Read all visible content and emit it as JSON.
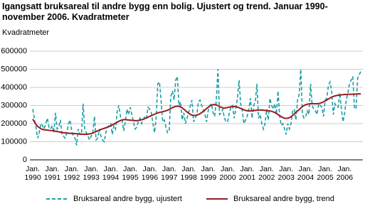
{
  "chart_data": {
    "type": "line",
    "title": "Igangsatt bruksareal til andre bygg enn bolig. Ujustert og trend. Januar 1990-november 2006. Kvadratmeter",
    "y_label": "Kvadratmeter",
    "categories": [
      "Jan. 1990",
      null,
      null,
      null,
      null,
      null,
      null,
      null,
      null,
      null,
      null,
      null,
      "Jan. 1991",
      null,
      null,
      null,
      null,
      null,
      null,
      null,
      null,
      null,
      null,
      null,
      "Jan. 1992",
      null,
      null,
      null,
      null,
      null,
      null,
      null,
      null,
      null,
      null,
      null,
      "Jan. 1993",
      null,
      null,
      null,
      null,
      null,
      null,
      null,
      null,
      null,
      null,
      null,
      "Jan. 1994",
      null,
      null,
      null,
      null,
      null,
      null,
      null,
      null,
      null,
      null,
      null,
      "Jan. 1995",
      null,
      null,
      null,
      null,
      null,
      null,
      null,
      null,
      null,
      null,
      null,
      "Jan. 1996",
      null,
      null,
      null,
      null,
      null,
      null,
      null,
      null,
      null,
      null,
      null,
      "Jan. 1997",
      null,
      null,
      null,
      null,
      null,
      null,
      null,
      null,
      null,
      null,
      null,
      "Jan. 1998",
      null,
      null,
      null,
      null,
      null,
      null,
      null,
      null,
      null,
      null,
      null,
      "Jan. 1999",
      null,
      null,
      null,
      null,
      null,
      null,
      null,
      null,
      null,
      null,
      null,
      "Jan. 2000",
      null,
      null,
      null,
      null,
      null,
      null,
      null,
      null,
      null,
      null,
      null,
      "Jan. 2001",
      null,
      null,
      null,
      null,
      null,
      null,
      null,
      null,
      null,
      null,
      null,
      "Jan. 2002",
      null,
      null,
      null,
      null,
      null,
      null,
      null,
      null,
      null,
      null,
      null,
      "Jan. 2003",
      null,
      null,
      null,
      null,
      null,
      null,
      null,
      null,
      null,
      null,
      null,
      "Jan. 2004",
      null,
      null,
      null,
      null,
      null,
      null,
      null,
      null,
      null,
      null,
      null,
      "Jan. 2005",
      null,
      null,
      null,
      null,
      null,
      null,
      null,
      null,
      null,
      null,
      null,
      "Jan. 2006",
      null,
      null,
      null,
      null,
      null,
      null,
      null,
      null,
      null,
      null
    ],
    "series": [
      {
        "name": "Bruksareal andre bygg, ujustert",
        "color": "#1a9ea6",
        "dashed": true,
        "values": [
          280000,
          230000,
          180000,
          120000,
          150000,
          200000,
          190000,
          170000,
          200000,
          230000,
          180000,
          170000,
          190000,
          150000,
          260000,
          170000,
          180000,
          220000,
          140000,
          130000,
          120000,
          150000,
          200000,
          220000,
          160000,
          130000,
          120000,
          80000,
          170000,
          140000,
          140000,
          310000,
          170000,
          150000,
          130000,
          110000,
          130000,
          150000,
          240000,
          110000,
          120000,
          170000,
          130000,
          110000,
          100000,
          150000,
          180000,
          190000,
          200000,
          140000,
          190000,
          170000,
          270000,
          300000,
          240000,
          220000,
          160000,
          210000,
          280000,
          250000,
          290000,
          250000,
          210000,
          170000,
          180000,
          210000,
          230000,
          200000,
          220000,
          240000,
          230000,
          290000,
          280000,
          260000,
          200000,
          150000,
          240000,
          420000,
          430000,
          330000,
          210000,
          220000,
          180000,
          150000,
          160000,
          350000,
          380000,
          330000,
          440000,
          460000,
          300000,
          320000,
          220000,
          260000,
          200000,
          230000,
          260000,
          300000,
          330000,
          210000,
          230000,
          250000,
          320000,
          330000,
          300000,
          280000,
          250000,
          210000,
          270000,
          300000,
          310000,
          260000,
          240000,
          330000,
          500000,
          250000,
          260000,
          280000,
          230000,
          210000,
          210000,
          260000,
          290000,
          300000,
          230000,
          280000,
          340000,
          440000,
          310000,
          270000,
          200000,
          220000,
          240000,
          280000,
          340000,
          230000,
          300000,
          320000,
          420000,
          230000,
          250000,
          200000,
          170000,
          200000,
          280000,
          220000,
          340000,
          300000,
          280000,
          310000,
          250000,
          380000,
          240000,
          190000,
          200000,
          170000,
          140000,
          200000,
          170000,
          200000,
          270000,
          280000,
          220000,
          330000,
          360000,
          500000,
          250000,
          230000,
          240000,
          270000,
          250000,
          420000,
          300000,
          280000,
          270000,
          250000,
          310000,
          300000,
          290000,
          240000,
          330000,
          340000,
          410000,
          430000,
          380000,
          250000,
          310000,
          290000,
          290000,
          370000,
          280000,
          210000,
          260000,
          330000,
          370000,
          420000,
          440000,
          460000,
          290000,
          280000,
          450000,
          470000,
          490000
        ]
      },
      {
        "name": "Bruksareal andre bygg, trend",
        "color": "#9b1b1e",
        "dashed": false,
        "values": [
          225000,
          210000,
          195000,
          185000,
          178000,
          172000,
          168000,
          166000,
          165000,
          164000,
          163000,
          162000,
          161000,
          160000,
          158000,
          157000,
          155000,
          153000,
          151000,
          150000,
          149000,
          148000,
          147000,
          146000,
          146000,
          145000,
          145000,
          144000,
          143000,
          142000,
          142000,
          141000,
          141000,
          141000,
          142000,
          143000,
          145000,
          148000,
          152000,
          156000,
          160000,
          164000,
          168000,
          171000,
          174000,
          177000,
          180000,
          184000,
          188000,
          193000,
          198000,
          203000,
          208000,
          213000,
          217000,
          220000,
          222000,
          222000,
          221000,
          220000,
          219000,
          218000,
          217000,
          216000,
          216000,
          217000,
          219000,
          221000,
          224000,
          228000,
          232000,
          236000,
          240000,
          244000,
          248000,
          252000,
          256000,
          259000,
          262000,
          264000,
          266000,
          268000,
          271000,
          274000,
          278000,
          283000,
          288000,
          292000,
          295000,
          296000,
          295000,
          292000,
          287000,
          280000,
          272000,
          264000,
          257000,
          251000,
          247000,
          245000,
          245000,
          247000,
          250000,
          255000,
          261000,
          268000,
          275000,
          283000,
          290000,
          297000,
          302000,
          305000,
          305000,
          303000,
          299000,
          294000,
          290000,
          287000,
          286000,
          287000,
          289000,
          291000,
          293000,
          294000,
          294000,
          293000,
          291000,
          288000,
          284000,
          280000,
          276000,
          273000,
          271000,
          270000,
          270000,
          271000,
          272000,
          273000,
          274000,
          275000,
          275000,
          275000,
          274000,
          273000,
          272000,
          271000,
          270000,
          268000,
          265000,
          261000,
          256000,
          250000,
          244000,
          238000,
          233000,
          230000,
          229000,
          230000,
          233000,
          238000,
          245000,
          253000,
          262000,
          270000,
          278000,
          286000,
          294000,
          300000,
          304000,
          307000,
          309000,
          310000,
          310000,
          310000,
          310000,
          310000,
          311000,
          313000,
          316000,
          320000,
          325000,
          330000,
          336000,
          341000,
          346000,
          350000,
          353000,
          355000,
          357000,
          358000,
          359000,
          360000,
          361000,
          361000,
          362000,
          362000,
          362000,
          363000,
          363000,
          363000,
          364000,
          364000,
          364000
        ]
      }
    ],
    "ylim": [
      0,
      600000
    ],
    "yticks": [
      0,
      100000,
      200000,
      300000,
      400000,
      500000,
      600000
    ],
    "grid": true,
    "legend": "bottom"
  }
}
